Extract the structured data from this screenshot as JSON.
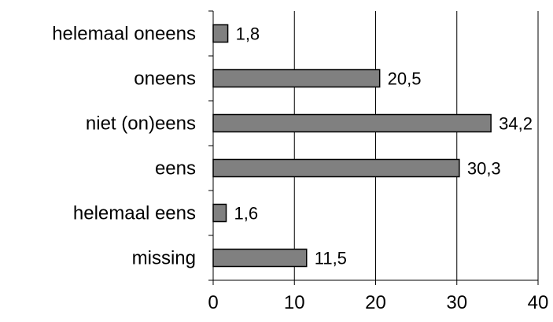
{
  "chart_data": {
    "type": "bar",
    "orientation": "horizontal",
    "categories": [
      "helemaal oneens",
      "oneens",
      "niet (on)eens",
      "eens",
      "helemaal eens",
      "missing"
    ],
    "values": [
      1.8,
      20.5,
      34.2,
      30.3,
      1.6,
      11.5
    ],
    "value_labels": [
      "1,8",
      "20,5",
      "34,2",
      "30,3",
      "1,6",
      "11,5"
    ],
    "xlim": [
      0,
      40
    ],
    "xticks": [
      0,
      10,
      20,
      30,
      40
    ],
    "grid": "vertical",
    "bar_color": "#808080",
    "bar_edge_color": "#000000",
    "title": "",
    "xlabel": "",
    "ylabel": ""
  }
}
